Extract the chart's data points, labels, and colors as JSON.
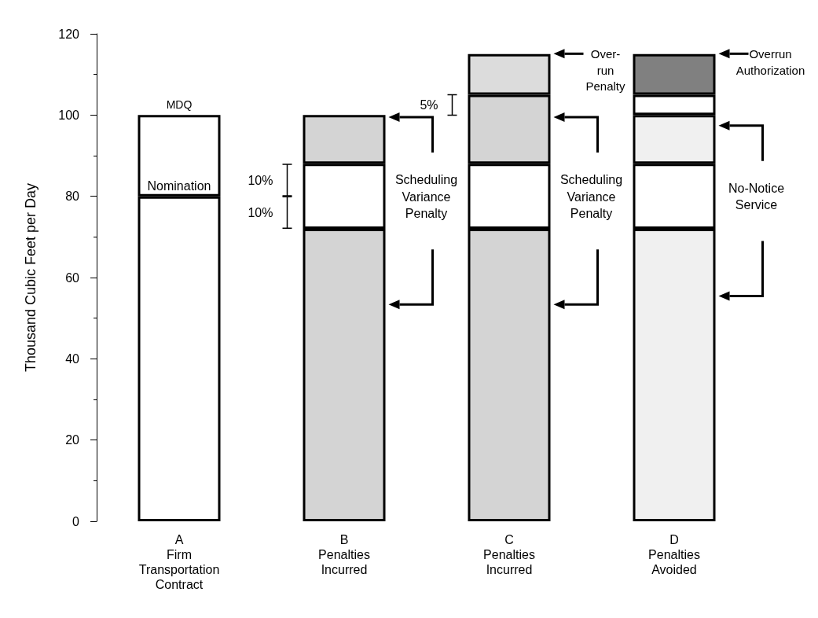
{
  "chart_data": {
    "type": "bar",
    "stacked": true,
    "ylabel": "Thousand Cubic Feet per Day",
    "categories": [
      "A\nFirm\nTransportation\nContract",
      "B\nPenalties\nIncurred",
      "C\nPenalties\nIncurred",
      "D\nPenalties\nAvoided"
    ],
    "ylim": [
      0,
      120
    ],
    "yticks": [
      0,
      20,
      40,
      60,
      80,
      100,
      120
    ],
    "series": [
      {
        "values": [
          80,
          72,
          72,
          72
        ],
        "colors": [
          "#ffffff",
          "#d4d4d4",
          "#d4d4d4",
          "#f0f0f0"
        ]
      },
      {
        "values": [
          20,
          16,
          16,
          16
        ],
        "colors": [
          "#ffffff",
          "#ffffff",
          "#ffffff",
          "#ffffff"
        ]
      },
      {
        "values": [
          null,
          12,
          17,
          12
        ],
        "colors": [
          "#ffffff",
          "#d4d4d4",
          "#d4d4d4",
          "#f0f0f0"
        ]
      },
      {
        "values": [
          null,
          null,
          10,
          5
        ],
        "colors": [
          "#ffffff",
          "#ffffff",
          "#dcdcdc",
          "#ffffff"
        ]
      },
      {
        "values": [
          null,
          null,
          null,
          10
        ],
        "colors": [
          "#ffffff",
          "#ffffff",
          "#ffffff",
          "#808080"
        ]
      }
    ],
    "annotations": [
      "MDQ",
      "Nomination",
      "10%",
      "10%",
      "5%",
      "Scheduling\nVariance\nPenalty",
      "Scheduling\nVariance\nPenalty",
      "Over-\nrun\nPenalty",
      "Overrun\nAuthorization",
      "No-Notice\nService"
    ]
  }
}
